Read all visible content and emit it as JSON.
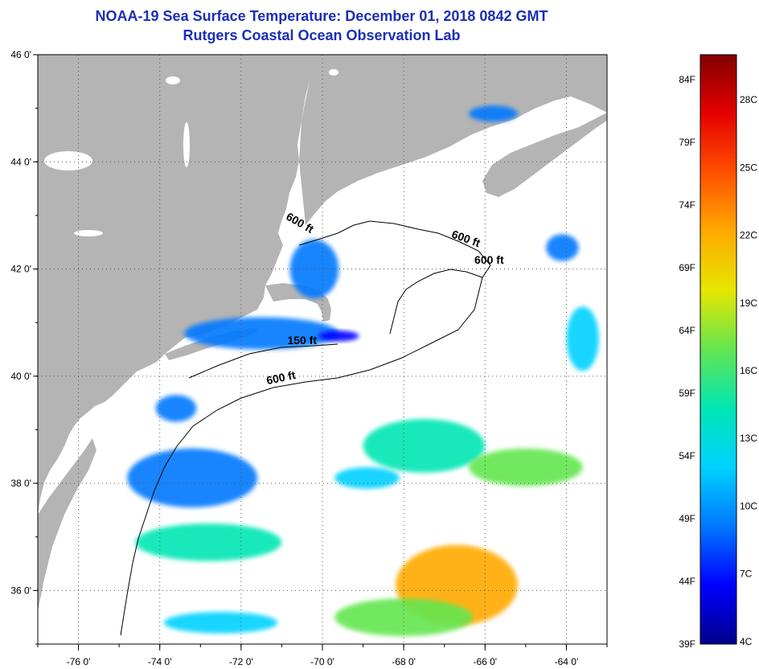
{
  "header": {
    "title": "NOAA-19 Sea Surface Temperature:  December 01, 2018 0842 GMT",
    "subtitle": "Rutgers Coastal Ocean Observation Lab"
  },
  "map": {
    "lon_min": -77,
    "lon_max": -63,
    "lat_min": 35,
    "lat_max": 46,
    "x_ticks": [
      {
        "value": -76,
        "label": "-76 0'"
      },
      {
        "value": -74,
        "label": "-74 0'"
      },
      {
        "value": -72,
        "label": "-72 0'"
      },
      {
        "value": -70,
        "label": "-70 0'"
      },
      {
        "value": -68,
        "label": "-68 0'"
      },
      {
        "value": -66,
        "label": "-66 0'"
      },
      {
        "value": -64,
        "label": "-64 0'"
      }
    ],
    "y_ticks": [
      {
        "value": 46,
        "label": "46 0'"
      },
      {
        "value": 44,
        "label": "44 0'"
      },
      {
        "value": 42,
        "label": "42 0'"
      },
      {
        "value": 40,
        "label": "40 0'"
      },
      {
        "value": 38,
        "label": "38 0'"
      },
      {
        "value": 36,
        "label": "36 0'"
      }
    ],
    "land_color": "#b4b4b4",
    "water_color": "#ffffff",
    "grid": true,
    "contour_labels": [
      {
        "text": "600 ft",
        "lon": -70.6,
        "lat": 42.8,
        "rotate": 30
      },
      {
        "text": "600 ft",
        "lon": -66.5,
        "lat": 42.5,
        "rotate": 20
      },
      {
        "text": "600 ft",
        "lon": -65.9,
        "lat": 42.1,
        "rotate": 0
      },
      {
        "text": "150 ft",
        "lon": -70.5,
        "lat": 40.6,
        "rotate": 0
      },
      {
        "text": "600 ft",
        "lon": -71.0,
        "lat": 39.9,
        "rotate": -12
      }
    ]
  },
  "colorbar": {
    "min_f": 39,
    "max_f": 86,
    "f_labels": [
      "84F",
      "79F",
      "74F",
      "69F",
      "64F",
      "59F",
      "54F",
      "49F",
      "44F",
      "39F"
    ],
    "f_values": [
      84,
      79,
      74,
      69,
      64,
      59,
      54,
      49,
      44,
      39
    ],
    "c_labels": [
      "28C",
      "25C",
      "22C",
      "19C",
      "16C",
      "13C",
      "10C",
      "7C",
      "4C"
    ],
    "c_values": [
      28,
      25,
      22,
      19,
      16,
      13,
      10,
      7,
      4
    ],
    "stops": [
      "#00008c",
      "#0000ff",
      "#0078ff",
      "#00d2ff",
      "#00e6b4",
      "#64e650",
      "#e6e600",
      "#ffaa00",
      "#ff5000",
      "#e60000",
      "#820000"
    ]
  },
  "sst_patches": [
    {
      "lon": -71.5,
      "lat": 40.8,
      "rx": 1.9,
      "ry": 0.3,
      "temp_f": 50
    },
    {
      "lon": -70.2,
      "lat": 42.0,
      "rx": 0.6,
      "ry": 0.55,
      "temp_f": 47
    },
    {
      "lon": -69.6,
      "lat": 40.75,
      "rx": 0.5,
      "ry": 0.1,
      "temp_f": 44
    },
    {
      "lon": -73.2,
      "lat": 38.1,
      "rx": 1.6,
      "ry": 0.55,
      "temp_f": 48
    },
    {
      "lon": -73.6,
      "lat": 39.4,
      "rx": 0.5,
      "ry": 0.25,
      "temp_f": 47
    },
    {
      "lon": -67.5,
      "lat": 38.7,
      "rx": 1.5,
      "ry": 0.5,
      "temp_f": 58
    },
    {
      "lon": -65.0,
      "lat": 38.3,
      "rx": 1.4,
      "ry": 0.35,
      "temp_f": 62
    },
    {
      "lon": -72.8,
      "lat": 36.9,
      "rx": 1.8,
      "ry": 0.35,
      "temp_f": 58
    },
    {
      "lon": -66.7,
      "lat": 36.1,
      "rx": 1.5,
      "ry": 0.75,
      "temp_f": 74
    },
    {
      "lon": -68.0,
      "lat": 35.5,
      "rx": 1.7,
      "ry": 0.35,
      "temp_f": 62
    },
    {
      "lon": -72.5,
      "lat": 35.4,
      "rx": 1.4,
      "ry": 0.2,
      "temp_f": 52
    },
    {
      "lon": -68.9,
      "lat": 38.1,
      "rx": 0.8,
      "ry": 0.2,
      "temp_f": 55
    },
    {
      "lon": -64.1,
      "lat": 42.4,
      "rx": 0.4,
      "ry": 0.25,
      "temp_f": 47
    },
    {
      "lon": -65.8,
      "lat": 44.9,
      "rx": 0.6,
      "ry": 0.15,
      "temp_f": 47
    },
    {
      "lon": -63.6,
      "lat": 40.7,
      "rx": 0.4,
      "ry": 0.6,
      "temp_f": 55
    }
  ]
}
